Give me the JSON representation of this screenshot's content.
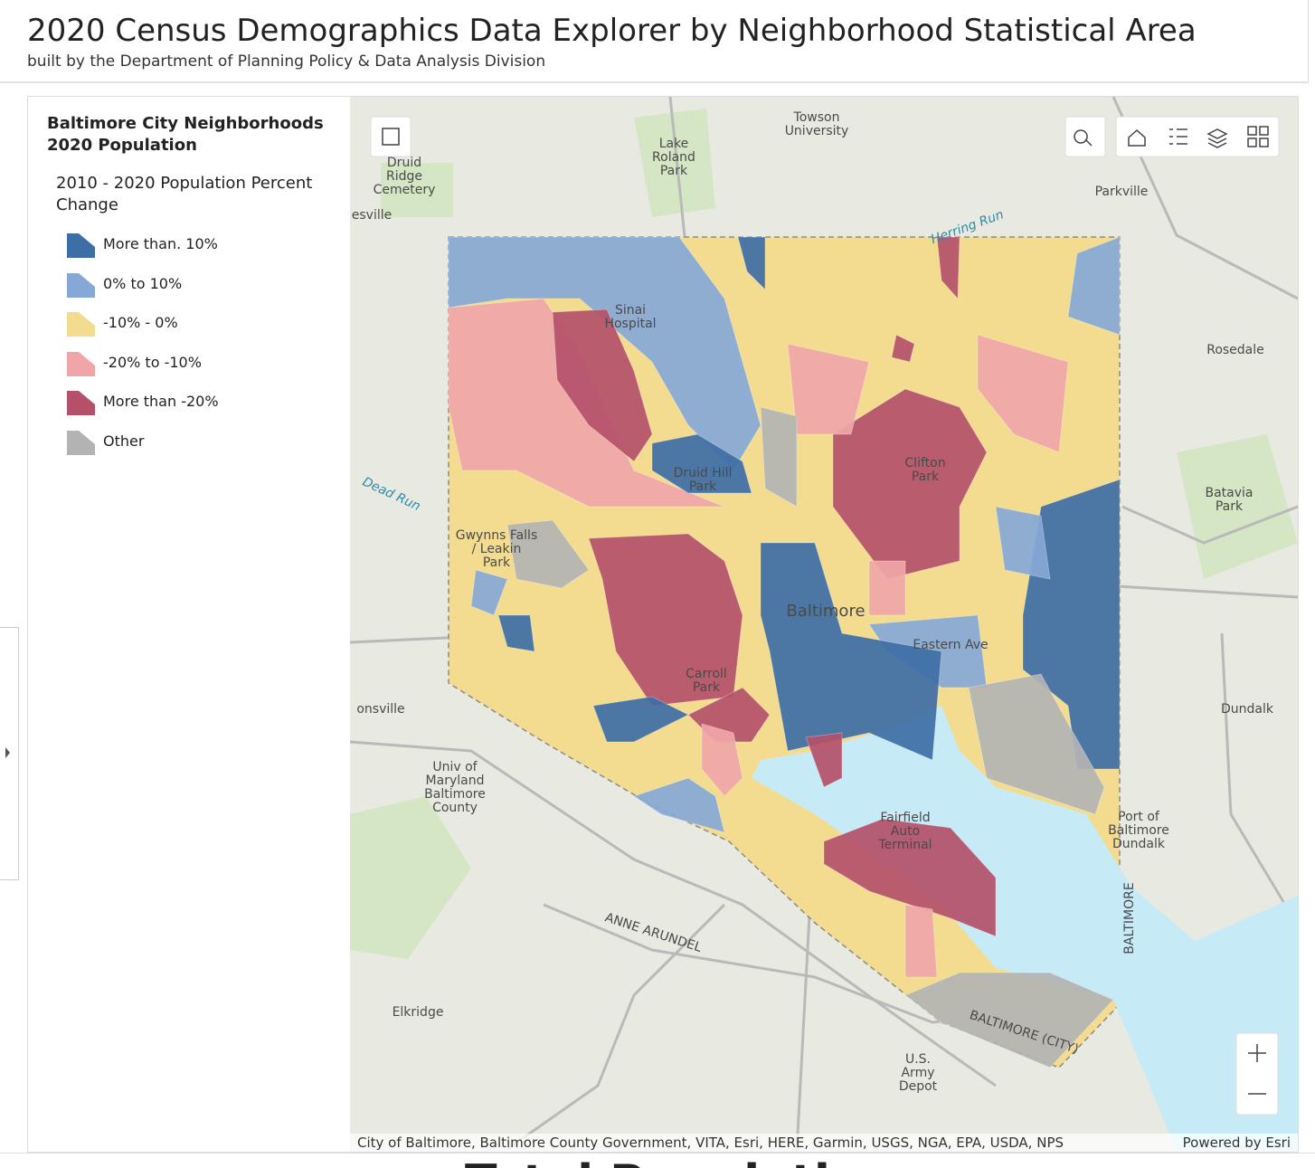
{
  "header": {
    "title": "2020 Census Demographics Data Explorer by Neighborhood Statistical Area",
    "subtitle": "built by the Department of Planning Policy & Data Analysis Division"
  },
  "legend": {
    "title": [
      "Baltimore City Neighborhoods",
      "2020 Population"
    ],
    "subtitle": [
      "2010 - 2020 Population Percent",
      "Change"
    ],
    "items": [
      {
        "label": "More than. 10%",
        "color": "#3e6ea6"
      },
      {
        "label": "0% to 10%",
        "color": "#86a8d6"
      },
      {
        "label": "-10% - 0%",
        "color": "#f3dc8f"
      },
      {
        "label": "-20% to -10%",
        "color": "#f0a6a8"
      },
      {
        "label": "More than -20%",
        "color": "#b4506a"
      },
      {
        "label": "Other",
        "color": "#b3b3b3"
      }
    ]
  },
  "map": {
    "labels": [
      {
        "lines": [
          "Towson",
          "University"
        ]
      },
      {
        "lines": [
          "Lake",
          "Roland",
          "Park"
        ]
      },
      {
        "lines": [
          "Druid",
          "Ridge",
          "Cemetery"
        ]
      },
      {
        "lines": [
          "Parkville"
        ]
      },
      {
        "lines": [
          "Rosedale"
        ]
      },
      {
        "lines": [
          "Dundalk"
        ]
      },
      {
        "lines": [
          "Batavia",
          "Park"
        ]
      },
      {
        "lines": [
          "Druid Hill",
          "Park"
        ]
      },
      {
        "lines": [
          "Clifton",
          "Park"
        ]
      },
      {
        "lines": [
          "Baltimore"
        ]
      },
      {
        "lines": [
          "Sinai",
          "Hospital"
        ]
      },
      {
        "lines": [
          "Gwynns Falls",
          "/ Leakin",
          "Park"
        ]
      },
      {
        "lines": [
          "Carroll",
          "Park"
        ]
      },
      {
        "lines": [
          "Eastern Ave"
        ]
      },
      {
        "lines": [
          "Fairfield",
          "Auto",
          "Terminal"
        ]
      },
      {
        "lines": [
          "Port of",
          "Baltimore",
          "Dundalk"
        ]
      },
      {
        "lines": [
          "Univ of",
          "Maryland",
          "Baltimore",
          "County"
        ]
      },
      {
        "lines": [
          "Elkridge"
        ]
      },
      {
        "lines": [
          "U.S.",
          "Army",
          "Depot"
        ]
      },
      {
        "lines": [
          "ANNE ARUNDEL"
        ]
      },
      {
        "lines": [
          "BALTIMORE (CITY)"
        ]
      },
      {
        "lines": [
          "BALTIMORE"
        ]
      },
      {
        "lines": [
          "Dead Run"
        ]
      },
      {
        "lines": [
          "Herring Run"
        ]
      },
      {
        "lines": [
          "onsville"
        ]
      },
      {
        "lines": [
          "esville"
        ]
      }
    ],
    "attribution": "City of Baltimore, Baltimore County Government, VITA, Esri, HERE, Garmin, USGS, NGA, EPA, USDA, NPS",
    "powered_by": "Powered by Esri"
  },
  "next_section": "Total Population"
}
